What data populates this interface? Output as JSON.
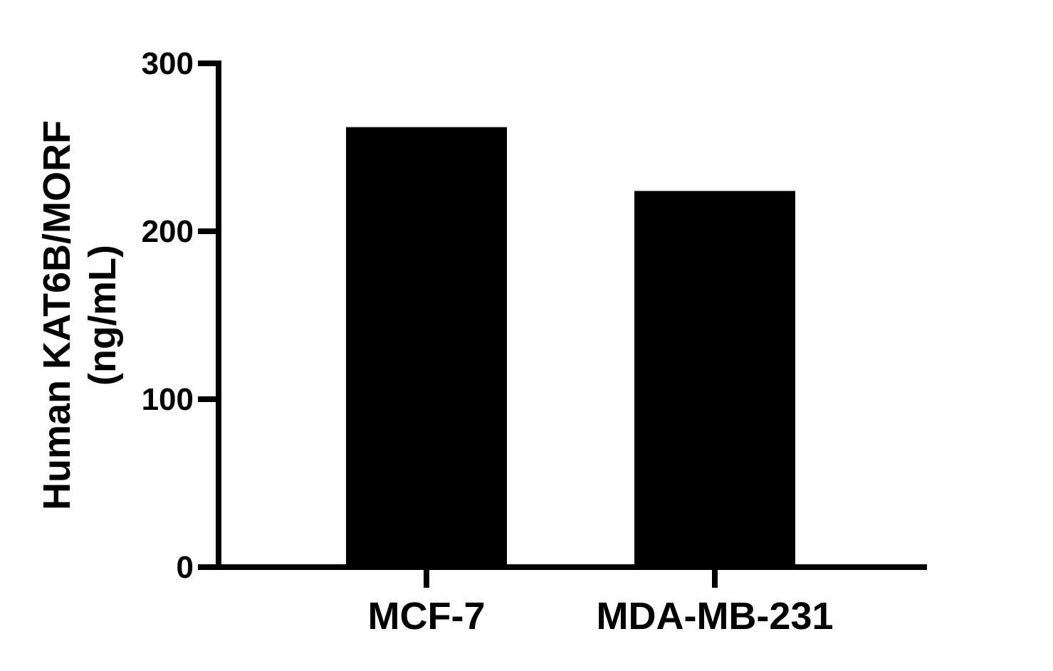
{
  "chart_data": {
    "type": "bar",
    "title": "",
    "xlabel": "",
    "ylabel_lines": [
      "Human KAT6B/MORF",
      "(ng/mL)"
    ],
    "categories": [
      "MCF-7",
      "MDA-MB-231"
    ],
    "values": [
      262,
      224
    ],
    "ylim": [
      0,
      300
    ],
    "yticks": [
      0,
      100,
      200,
      300
    ],
    "grid": false,
    "legend": "none",
    "bar_color": "#000000",
    "axis_color": "#000000"
  }
}
